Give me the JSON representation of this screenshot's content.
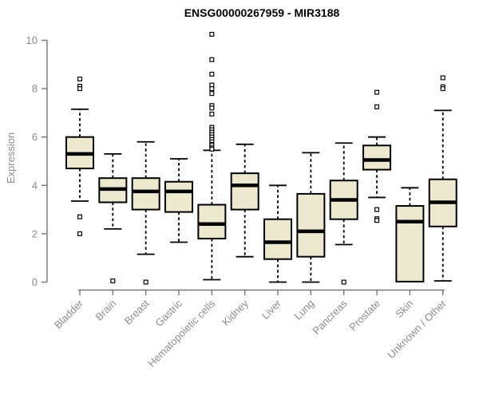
{
  "chart_data": {
    "type": "boxplot",
    "title": "ENSG00000267959 - MIR3188",
    "ylabel": "Expression",
    "ylim": [
      0,
      10
    ],
    "yticks": [
      0,
      2,
      4,
      6,
      8,
      10
    ],
    "grid": false,
    "legend": null,
    "categories": [
      "Bladder",
      "Brain",
      "Breast",
      "Gastric",
      "Hematopoietic cells",
      "Kidney",
      "Liver",
      "Lung",
      "Pancreas",
      "Prostate",
      "Skin",
      "Unknown / Other"
    ],
    "boxes": [
      {
        "label": "Bladder",
        "whisker_low": 3.35,
        "q1": 4.7,
        "median": 5.3,
        "q3": 6.0,
        "whisker_high": 7.15,
        "outliers": [
          8.4,
          8.1,
          8.0,
          2.7,
          2.0
        ]
      },
      {
        "label": "Brain",
        "whisker_low": 2.2,
        "q1": 3.3,
        "median": 3.85,
        "q3": 4.3,
        "whisker_high": 5.3,
        "outliers": [
          0.05
        ]
      },
      {
        "label": "Breast",
        "whisker_low": 1.15,
        "q1": 3.0,
        "median": 3.75,
        "q3": 4.3,
        "whisker_high": 5.8,
        "outliers": [
          0.0
        ]
      },
      {
        "label": "Gastric",
        "whisker_low": 1.65,
        "q1": 2.9,
        "median": 3.75,
        "q3": 4.15,
        "whisker_high": 5.1,
        "outliers": []
      },
      {
        "label": "Hematopoietic cells",
        "whisker_low": 0.1,
        "q1": 1.8,
        "median": 2.4,
        "q3": 3.2,
        "whisker_high": 5.45,
        "outliers": [
          10.25,
          9.2,
          8.6,
          8.15,
          8.0,
          7.8,
          7.3,
          7.2,
          6.95,
          6.4,
          6.3,
          6.2,
          6.1,
          6.0,
          5.9,
          5.8,
          5.7,
          5.65,
          5.55,
          5.5
        ]
      },
      {
        "label": "Kidney",
        "whisker_low": 1.05,
        "q1": 3.0,
        "median": 4.0,
        "q3": 4.5,
        "whisker_high": 5.7,
        "outliers": []
      },
      {
        "label": "Liver",
        "whisker_low": 0.0,
        "q1": 0.95,
        "median": 1.65,
        "q3": 2.6,
        "whisker_high": 4.0,
        "outliers": []
      },
      {
        "label": "Lung",
        "whisker_low": 0.0,
        "q1": 1.05,
        "median": 2.1,
        "q3": 3.65,
        "whisker_high": 5.35,
        "outliers": []
      },
      {
        "label": "Pancreas",
        "whisker_low": 1.55,
        "q1": 2.6,
        "median": 3.4,
        "q3": 4.2,
        "whisker_high": 5.75,
        "outliers": [
          0.0
        ]
      },
      {
        "label": "Prostate",
        "whisker_low": 3.5,
        "q1": 4.65,
        "median": 5.05,
        "q3": 5.65,
        "whisker_high": 6.0,
        "outliers": [
          7.85,
          7.25,
          3.0,
          2.62,
          2.55
        ]
      },
      {
        "label": "Skin",
        "whisker_low": 0.02,
        "q1": 0.02,
        "median": 2.5,
        "q3": 3.15,
        "whisker_high": 3.9,
        "outliers": []
      },
      {
        "label": "Unknown / Other",
        "whisker_low": 0.05,
        "q1": 2.3,
        "median": 3.3,
        "q3": 4.25,
        "whisker_high": 7.1,
        "outliers": [
          8.45,
          8.08,
          8.0
        ]
      }
    ],
    "colors": {
      "box_fill": "#EDE8D0",
      "box_border": "#000000",
      "median": "#000000",
      "whisker": "#000000",
      "outlier": "#000000",
      "axis": "#777777",
      "labels": "#8d8d8d",
      "title": "#000000",
      "background": "#FFFFFF"
    }
  }
}
